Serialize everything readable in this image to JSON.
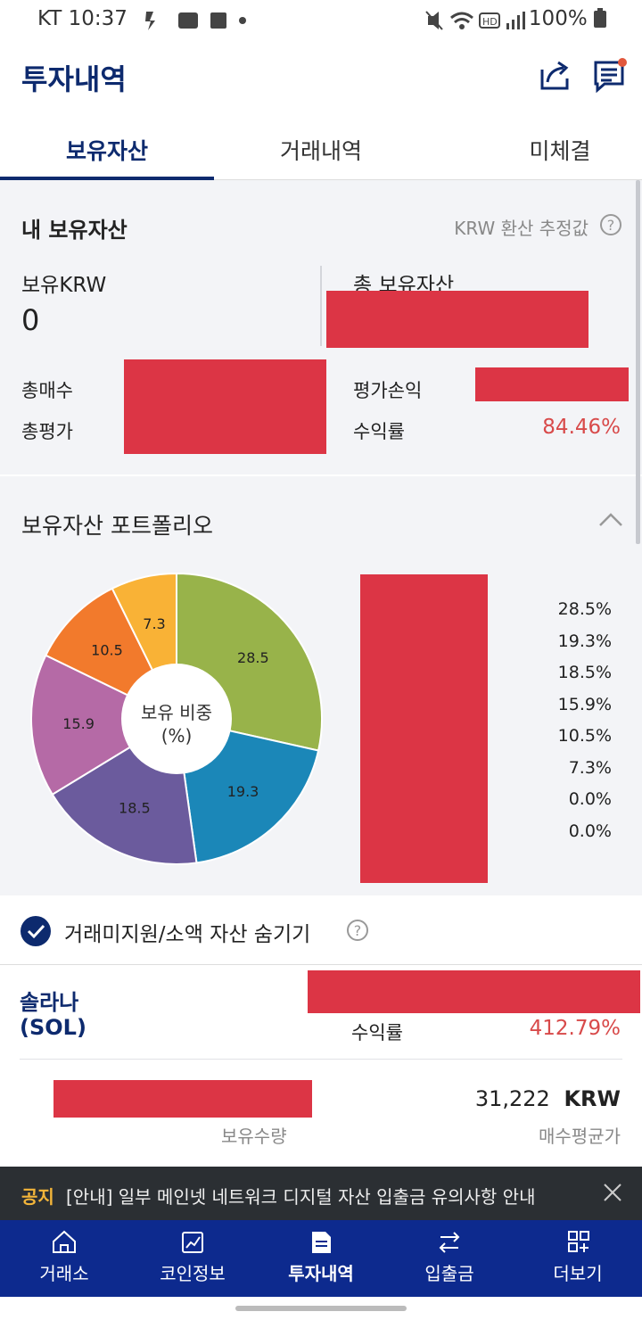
{
  "status_bar": {
    "carrier_time": "KT 10:37",
    "battery": "100%"
  },
  "header": {
    "title": "투자내역"
  },
  "tabs": [
    {
      "label": "보유자산",
      "active": true
    },
    {
      "label": "거래내역",
      "active": false
    },
    {
      "label": "미체결",
      "active": false
    }
  ],
  "summary": {
    "title": "내 보유자산",
    "estimate_label": "KRW 환산 추정값",
    "krw_label": "보유KRW",
    "krw_value": "0",
    "total_label": "총 보유자산",
    "total_buy_label": "총매수",
    "total_eval_label": "총평가",
    "pnl_label": "평가손익",
    "return_label": "수익률",
    "return_value": "84.46%"
  },
  "portfolio": {
    "title": "보유자산 포트폴리오",
    "center_label_1": "보유 비중",
    "center_label_2": "(%)",
    "legend_values": [
      "28.5%",
      "19.3%",
      "18.5%",
      "15.9%",
      "10.5%",
      "7.3%",
      "0.0%",
      "0.0%"
    ]
  },
  "chart_data": {
    "type": "pie",
    "values": [
      28.5,
      19.3,
      18.5,
      15.9,
      10.5,
      7.3
    ],
    "labels": [
      "28.5",
      "19.3",
      "18.5",
      "15.9",
      "10.5",
      "7.3"
    ],
    "colors": [
      "#98b34a",
      "#1b87b8",
      "#6b5b9d",
      "#b56aa6",
      "#f27a2c",
      "#f9b236"
    ]
  },
  "hide_option": {
    "label": "거래미지원/소액 자산 숨기기",
    "checked": true
  },
  "asset": {
    "name": "솔라나",
    "symbol": "(SOL)",
    "return_label": "수익률",
    "return_value": "412.79%",
    "qty_label": "보유수량",
    "avg_price_value": "31,222",
    "avg_price_unit": "KRW",
    "avg_price_label": "매수평균가"
  },
  "notice": {
    "tag": "공지",
    "text": "[안내] 일부 메인넷 네트워크 디지털 자산 입출금 유의사항 안내"
  },
  "nav": [
    {
      "label": "거래소",
      "icon": "home-icon"
    },
    {
      "label": "코인정보",
      "icon": "chart-icon"
    },
    {
      "label": "투자내역",
      "icon": "document-icon",
      "active": true
    },
    {
      "label": "입출금",
      "icon": "transfer-icon"
    },
    {
      "label": "더보기",
      "icon": "grid-plus-icon"
    }
  ]
}
